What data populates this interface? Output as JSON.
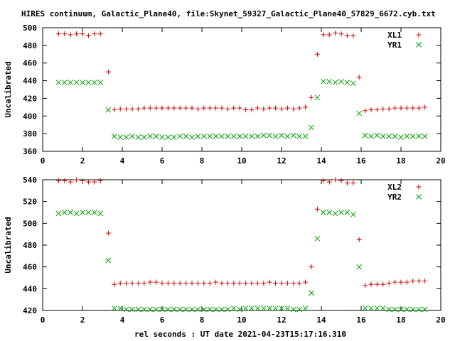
{
  "title": "HIRES continuum, Galactic_Plane40, file:Skynet_59327_Galactic_Plane40_57829_6672.cyb.txt",
  "xlabel": "rel seconds : UT date 2021-04-23T15:17:16.310",
  "colors": {
    "XL": "#d00000",
    "YR": "#00a000",
    "axis": "#000000"
  },
  "chart_data": [
    {
      "type": "scatter",
      "ylabel": "Uncalibrated",
      "xlim": [
        0,
        20
      ],
      "ylim": [
        360,
        500
      ],
      "xticks": [
        0,
        2,
        4,
        6,
        8,
        10,
        12,
        14,
        16,
        18,
        20
      ],
      "yticks": [
        360,
        380,
        400,
        420,
        440,
        460,
        480,
        500
      ],
      "grid": false,
      "legend_position": "top-right",
      "series": [
        {
          "name": "XL1",
          "marker": "plus",
          "x": [
            0.8,
            1.1,
            1.4,
            1.7,
            2.0,
            2.3,
            2.6,
            2.9,
            3.3,
            3.6,
            3.9,
            4.2,
            4.5,
            4.8,
            5.1,
            5.4,
            5.7,
            6.0,
            6.3,
            6.6,
            6.9,
            7.2,
            7.5,
            7.8,
            8.1,
            8.4,
            8.7,
            9.0,
            9.3,
            9.6,
            9.9,
            10.2,
            10.5,
            10.8,
            11.1,
            11.4,
            11.7,
            12.0,
            12.3,
            12.6,
            12.9,
            13.2,
            13.5,
            13.8,
            14.1,
            14.4,
            14.7,
            15.0,
            15.3,
            15.6,
            15.9,
            16.2,
            16.5,
            16.8,
            17.1,
            17.4,
            17.7,
            18.0,
            18.3,
            18.6,
            18.9,
            19.2
          ],
          "y": [
            493,
            493,
            492,
            493,
            493,
            491,
            493,
            493,
            450,
            407,
            408,
            408,
            408,
            408,
            409,
            409,
            409,
            409,
            409,
            409,
            409,
            409,
            409,
            408,
            409,
            409,
            409,
            409,
            408,
            409,
            409,
            407,
            407,
            409,
            408,
            409,
            409,
            408,
            409,
            408,
            409,
            410,
            421,
            470,
            492,
            492,
            494,
            493,
            491,
            491,
            444,
            406,
            407,
            407,
            408,
            408,
            409,
            409,
            409,
            409,
            409,
            410
          ]
        },
        {
          "name": "YR1",
          "marker": "cross",
          "x": [
            0.8,
            1.1,
            1.4,
            1.7,
            2.0,
            2.3,
            2.6,
            2.9,
            3.3,
            3.6,
            3.9,
            4.2,
            4.5,
            4.8,
            5.1,
            5.4,
            5.7,
            6.0,
            6.3,
            6.6,
            6.9,
            7.2,
            7.5,
            7.8,
            8.1,
            8.4,
            8.7,
            9.0,
            9.3,
            9.6,
            9.9,
            10.2,
            10.5,
            10.8,
            11.1,
            11.4,
            11.7,
            12.0,
            12.3,
            12.6,
            12.9,
            13.2,
            13.5,
            13.8,
            14.1,
            14.4,
            14.7,
            15.0,
            15.3,
            15.6,
            15.9,
            16.2,
            16.5,
            16.8,
            17.1,
            17.4,
            17.7,
            18.0,
            18.3,
            18.6,
            18.9,
            19.2
          ],
          "y": [
            438,
            438,
            438,
            438,
            438,
            438,
            438,
            438,
            407,
            377,
            376,
            376,
            377,
            376,
            376,
            377,
            377,
            376,
            376,
            376,
            377,
            377,
            376,
            377,
            377,
            377,
            377,
            377,
            377,
            377,
            377,
            377,
            377,
            377,
            378,
            378,
            377,
            378,
            377,
            378,
            377,
            377,
            387,
            421,
            439,
            439,
            438,
            439,
            438,
            437,
            403,
            378,
            377,
            378,
            377,
            377,
            377,
            376,
            377,
            377,
            377,
            377
          ]
        }
      ]
    },
    {
      "type": "scatter",
      "ylabel": "Uncalibrated",
      "xlim": [
        0,
        20
      ],
      "ylim": [
        420,
        540
      ],
      "xticks": [
        0,
        2,
        4,
        6,
        8,
        10,
        12,
        14,
        16,
        18,
        20
      ],
      "yticks": [
        420,
        440,
        460,
        480,
        500,
        520,
        540
      ],
      "grid": false,
      "legend_position": "top-right",
      "series": [
        {
          "name": "XL2",
          "marker": "plus",
          "x": [
            0.8,
            1.1,
            1.4,
            1.7,
            2.0,
            2.3,
            2.6,
            2.9,
            3.3,
            3.6,
            3.9,
            4.2,
            4.5,
            4.8,
            5.1,
            5.4,
            5.7,
            6.0,
            6.3,
            6.6,
            6.9,
            7.2,
            7.5,
            7.8,
            8.1,
            8.4,
            8.7,
            9.0,
            9.3,
            9.6,
            9.9,
            10.2,
            10.5,
            10.8,
            11.1,
            11.4,
            11.7,
            12.0,
            12.3,
            12.6,
            12.9,
            13.2,
            13.5,
            13.8,
            14.1,
            14.4,
            14.7,
            15.0,
            15.3,
            15.6,
            15.9,
            16.2,
            16.5,
            16.8,
            17.1,
            17.4,
            17.7,
            18.0,
            18.3,
            18.6,
            18.9,
            19.2
          ],
          "y": [
            539,
            539,
            538,
            540,
            539,
            538,
            538,
            539,
            491,
            444,
            445,
            445,
            445,
            445,
            445,
            446,
            446,
            445,
            445,
            445,
            445,
            445,
            445,
            445,
            445,
            445,
            446,
            445,
            445,
            445,
            445,
            445,
            445,
            445,
            445,
            446,
            445,
            445,
            445,
            445,
            445,
            446,
            460,
            513,
            539,
            538,
            540,
            539,
            537,
            537,
            485,
            443,
            444,
            444,
            444,
            445,
            446,
            446,
            446,
            447,
            447,
            447
          ]
        },
        {
          "name": "YR2",
          "marker": "cross",
          "x": [
            0.8,
            1.1,
            1.4,
            1.7,
            2.0,
            2.3,
            2.6,
            2.9,
            3.3,
            3.6,
            3.9,
            4.2,
            4.5,
            4.8,
            5.1,
            5.4,
            5.7,
            6.0,
            6.3,
            6.6,
            6.9,
            7.2,
            7.5,
            7.8,
            8.1,
            8.4,
            8.7,
            9.0,
            9.3,
            9.6,
            9.9,
            10.2,
            10.5,
            10.8,
            11.1,
            11.4,
            11.7,
            12.0,
            12.3,
            12.6,
            12.9,
            13.2,
            13.5,
            13.8,
            14.1,
            14.4,
            14.7,
            15.0,
            15.3,
            15.6,
            15.9,
            16.2,
            16.5,
            16.8,
            17.1,
            17.4,
            17.7,
            18.0,
            18.3,
            18.6,
            18.9,
            19.2
          ],
          "y": [
            509,
            510,
            510,
            509,
            510,
            510,
            510,
            509,
            466,
            422,
            422,
            421,
            421,
            421,
            421,
            421,
            421,
            421,
            421,
            421,
            421,
            421,
            421,
            421,
            421,
            421,
            421,
            421,
            421,
            422,
            421,
            422,
            422,
            422,
            422,
            422,
            422,
            422,
            422,
            421,
            421,
            422,
            436,
            486,
            510,
            510,
            509,
            510,
            510,
            508,
            460,
            422,
            422,
            422,
            422,
            421,
            421,
            421,
            421,
            421,
            421,
            421
          ]
        }
      ]
    }
  ]
}
